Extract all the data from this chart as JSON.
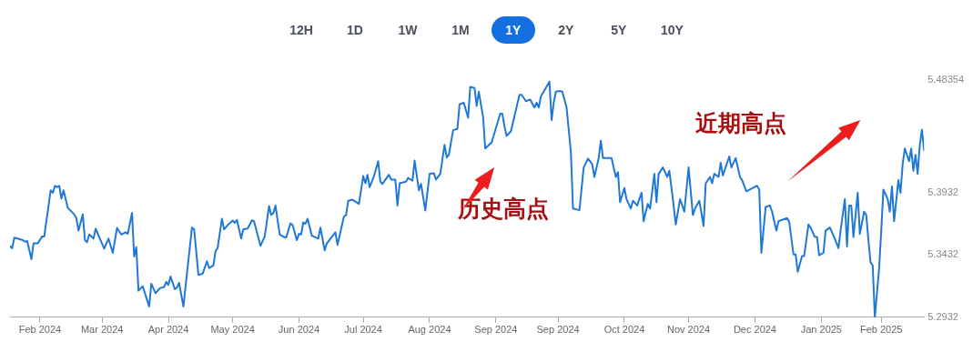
{
  "chart_data": {
    "type": "line",
    "annotations": [
      "12H",
      "1D",
      "1W",
      "1M",
      "1Y",
      "2Y",
      "5Y",
      "10Y",
      "历史高点",
      "近期高点"
    ],
    "xlim": [
      "2024-01-18",
      "2025-03-20"
    ],
    "xticks": [
      {
        "value": "2024-02-01",
        "label": "Feb 2024"
      },
      {
        "value": "2024-03-01",
        "label": "Mar 2024"
      },
      {
        "value": "2024-04-01",
        "label": "Apr 2024"
      },
      {
        "value": "2024-05-01",
        "label": "May 2024"
      },
      {
        "value": "2024-06-01",
        "label": "Jun 2024"
      },
      {
        "value": "2024-07-01",
        "label": "Jul 2024"
      },
      {
        "value": "2024-08-01",
        "label": "Aug 2024"
      },
      {
        "value": "2024-09-01",
        "label": "Sep 2024"
      },
      {
        "value": "2024-09-30",
        "label": "Sep 2024"
      },
      {
        "value": "2024-10-31",
        "label": "Oct 2024"
      },
      {
        "value": "2024-11-30",
        "label": "Nov 2024"
      },
      {
        "value": "2024-12-31",
        "label": "Dec 2024"
      },
      {
        "value": "2025-01-31",
        "label": "Jan 2025"
      },
      {
        "value": "2025-02-28",
        "label": "Feb 2025"
      }
    ],
    "ylim": [
      5.2932,
      5.48354
    ],
    "yticks": [
      5.2932,
      5.3432,
      5.3932,
      5.48354
    ],
    "grid": false,
    "legend": false,
    "marker": "none",
    "line_style": "solid",
    "series": [
      {
        "color": "#1f78d6",
        "x": [
          "2024-01-18",
          "2024-01-19",
          "2024-01-20",
          "2024-01-24",
          "2024-01-25",
          "2024-01-26",
          "2024-01-28",
          "2024-01-29",
          "2024-01-31",
          "2024-02-02",
          "2024-02-03",
          "2024-02-06",
          "2024-02-07",
          "2024-02-08",
          "2024-02-09",
          "2024-02-10",
          "2024-02-11",
          "2024-02-12",
          "2024-02-14",
          "2024-02-17",
          "2024-02-18",
          "2024-02-19",
          "2024-02-21",
          "2024-02-22",
          "2024-02-23",
          "2024-02-24",
          "2024-02-26",
          "2024-02-27",
          "2024-03-02",
          "2024-03-04",
          "2024-03-06",
          "2024-03-08",
          "2024-03-09",
          "2024-03-10",
          "2024-03-12",
          "2024-03-13",
          "2024-03-15",
          "2024-03-16",
          "2024-03-17",
          "2024-03-18",
          "2024-03-20",
          "2024-03-23",
          "2024-03-24",
          "2024-03-26",
          "2024-03-28",
          "2024-03-30",
          "2024-03-31",
          "2024-04-01",
          "2024-04-02",
          "2024-04-04",
          "2024-04-05",
          "2024-04-06",
          "2024-04-08",
          "2024-04-12",
          "2024-04-13",
          "2024-04-15",
          "2024-04-17",
          "2024-04-19",
          "2024-04-20",
          "2024-04-22",
          "2024-04-23",
          "2024-04-24",
          "2024-04-26",
          "2024-04-27",
          "2024-04-29",
          "2024-05-01",
          "2024-05-02",
          "2024-05-03",
          "2024-05-05",
          "2024-05-06",
          "2024-05-08",
          "2024-05-10",
          "2024-05-11",
          "2024-05-14",
          "2024-05-16",
          "2024-05-18",
          "2024-05-19",
          "2024-05-20",
          "2024-05-21",
          "2024-05-23",
          "2024-05-25",
          "2024-05-26",
          "2024-05-28",
          "2024-05-29",
          "2024-05-31",
          "2024-06-01",
          "2024-06-02",
          "2024-06-03",
          "2024-06-04",
          "2024-06-05",
          "2024-06-07",
          "2024-06-10",
          "2024-06-11",
          "2024-06-13",
          "2024-06-14",
          "2024-06-18",
          "2024-06-19",
          "2024-06-22",
          "2024-06-23",
          "2024-06-24",
          "2024-06-26",
          "2024-06-29",
          "2024-07-01",
          "2024-07-02",
          "2024-07-03",
          "2024-07-04",
          "2024-07-06",
          "2024-07-08",
          "2024-07-09",
          "2024-07-10",
          "2024-07-13",
          "2024-07-14",
          "2024-07-16",
          "2024-07-17",
          "2024-07-18",
          "2024-07-21",
          "2024-07-22",
          "2024-07-24",
          "2024-07-25",
          "2024-07-27",
          "2024-07-28",
          "2024-07-30",
          "2024-08-01",
          "2024-08-03",
          "2024-08-04",
          "2024-08-06",
          "2024-08-08",
          "2024-08-09",
          "2024-08-10",
          "2024-08-12",
          "2024-08-14",
          "2024-08-15",
          "2024-08-17",
          "2024-08-19",
          "2024-08-20",
          "2024-08-22",
          "2024-08-23",
          "2024-08-24",
          "2024-08-26",
          "2024-08-27",
          "2024-08-30",
          "2024-09-03",
          "2024-09-04",
          "2024-09-05",
          "2024-09-06",
          "2024-09-08",
          "2024-09-12",
          "2024-09-13",
          "2024-09-15",
          "2024-09-17",
          "2024-09-19",
          "2024-09-20",
          "2024-09-21",
          "2024-09-22",
          "2024-09-26",
          "2024-09-27",
          "2024-09-28",
          "2024-09-29",
          "2024-10-01",
          "2024-10-02",
          "2024-10-04",
          "2024-10-06",
          "2024-10-07",
          "2024-10-10",
          "2024-10-12",
          "2024-10-14",
          "2024-10-16",
          "2024-10-17",
          "2024-10-19",
          "2024-10-20",
          "2024-10-21",
          "2024-10-25",
          "2024-10-27",
          "2024-10-28",
          "2024-10-29",
          "2024-10-31",
          "2024-11-01",
          "2024-11-03",
          "2024-11-04",
          "2024-11-06",
          "2024-11-08",
          "2024-11-09",
          "2024-11-10",
          "2024-11-11",
          "2024-11-12",
          "2024-11-14",
          "2024-11-15",
          "2024-11-16",
          "2024-11-18",
          "2024-11-20",
          "2024-11-21",
          "2024-11-23",
          "2024-11-24",
          "2024-11-26",
          "2024-11-28",
          "2024-11-30",
          "2024-12-02",
          "2024-12-03",
          "2024-12-05",
          "2024-12-07",
          "2024-12-08",
          "2024-12-10",
          "2024-12-11",
          "2024-12-12",
          "2024-12-14",
          "2024-12-15",
          "2024-12-16",
          "2024-12-19",
          "2024-12-20",
          "2024-12-22",
          "2024-12-24",
          "2024-12-25",
          "2024-12-27",
          "2024-12-30",
          "2025-01-01",
          "2025-01-02",
          "2025-01-03",
          "2025-01-05",
          "2025-01-07",
          "2025-01-08",
          "2025-01-10",
          "2025-01-11",
          "2025-01-15",
          "2025-01-16",
          "2025-01-18",
          "2025-01-19",
          "2025-01-20",
          "2025-01-22",
          "2025-01-23",
          "2025-01-25",
          "2025-01-26",
          "2025-01-28",
          "2025-01-29",
          "2025-01-30",
          "2025-02-01",
          "2025-02-02",
          "2025-02-04",
          "2025-02-06",
          "2025-02-08",
          "2025-02-09",
          "2025-02-11",
          "2025-02-12",
          "2025-02-13",
          "2025-02-14",
          "2025-02-15",
          "2025-02-17",
          "2025-02-18",
          "2025-02-20",
          "2025-02-21",
          "2025-02-22",
          "2025-02-23",
          "2025-02-24",
          "2025-02-25",
          "2025-02-27",
          "2025-02-28",
          "2025-03-01",
          "2025-03-03",
          "2025-03-04",
          "2025-03-05",
          "2025-03-06",
          "2025-03-08",
          "2025-03-09",
          "2025-03-10",
          "2025-03-11",
          "2025-03-12",
          "2025-03-13",
          "2025-03-14",
          "2025-03-15",
          "2025-03-16",
          "2025-03-17",
          "2025-03-18",
          "2025-03-19",
          "2025-03-20"
        ],
        "values": [
          5.3505,
          5.3485,
          5.3571,
          5.3551,
          5.3538,
          5.3545,
          5.3398,
          5.3525,
          5.3525,
          5.3581,
          5.3581,
          5.3951,
          5.3931,
          5.3987,
          5.3976,
          5.3987,
          5.3885,
          5.3951,
          5.3809,
          5.3758,
          5.3728,
          5.3627,
          5.3758,
          5.3551,
          5.3535,
          5.3596,
          5.3563,
          5.3642,
          5.3482,
          5.3563,
          5.3449,
          5.3649,
          5.3622,
          5.3596,
          5.3614,
          5.3601,
          5.3769,
          5.3419,
          5.3495,
          5.3145,
          5.318,
          5.3018,
          5.3201,
          5.3125,
          5.3165,
          5.3175,
          5.3216,
          5.3191,
          5.3259,
          5.3158,
          5.317,
          5.3208,
          5.3018,
          5.3652,
          5.3639,
          5.3272,
          5.3282,
          5.3381,
          5.3327,
          5.3348,
          5.3462,
          5.3487,
          5.3723,
          5.3637,
          5.3677,
          5.3708,
          5.369,
          5.3713,
          5.3563,
          5.3639,
          5.3644,
          5.371,
          5.3703,
          5.3505,
          5.3581,
          5.3824,
          5.3753,
          5.3766,
          5.3829,
          5.3596,
          5.3576,
          5.3571,
          5.3685,
          5.3672,
          5.3551,
          5.3601,
          5.3596,
          5.3693,
          5.3682,
          5.3723,
          5.3586,
          5.3563,
          5.3652,
          5.3469,
          5.3525,
          5.3614,
          5.3513,
          5.3741,
          5.3753,
          5.3867,
          5.3875,
          5.3842,
          5.4065,
          5.4007,
          5.4075,
          5.3976,
          5.4063,
          5.4184,
          5.402,
          5.4002,
          5.4075,
          5.4037,
          5.4037,
          5.3829,
          5.4007,
          5.402,
          5.405,
          5.4027,
          5.4189,
          5.3951,
          5.4002,
          5.3789,
          5.4083,
          5.4088,
          5.4037,
          5.4083,
          5.4316,
          5.4215,
          5.4235,
          5.4433,
          5.4443,
          5.4641,
          5.4653,
          5.4532,
          5.478,
          5.4772,
          5.4628,
          5.4742,
          5.4539,
          5.4286,
          5.4336,
          5.4565,
          5.4565,
          5.4463,
          5.4387,
          5.4425,
          5.4717,
          5.4717,
          5.4666,
          5.4679,
          5.4615,
          5.4653,
          5.4615,
          5.4704,
          5.4823,
          5.4514,
          5.4653,
          5.4742,
          5.4747,
          5.4742,
          5.4615,
          5.426,
          5.3804,
          5.3791,
          5.4134,
          5.4205,
          5.4159,
          5.4058,
          5.421,
          5.4349,
          5.421,
          5.421,
          5.4058,
          5.4096,
          5.3855,
          5.3969,
          5.388,
          5.3804,
          5.3867,
          5.3829,
          5.3931,
          5.3703,
          5.3779,
          5.3842,
          5.3804,
          5.4083,
          5.3855,
          5.4083,
          5.4134,
          5.4058,
          5.4108,
          5.3829,
          5.3677,
          5.388,
          5.3779,
          5.4134,
          5.3753,
          5.3804,
          5.3867,
          5.3665,
          5.4007,
          5.4058,
          5.4007,
          5.4083,
          5.4058,
          5.4172,
          5.407,
          5.4222,
          5.4134,
          5.421,
          5.4058,
          5.4032,
          5.3943,
          5.3969,
          5.3987,
          5.3956,
          5.3449,
          5.3817,
          5.3829,
          5.3779,
          5.3627,
          5.3703,
          5.3728,
          5.3698,
          5.3436,
          5.3436,
          5.3297,
          5.3424,
          5.3424,
          5.3677,
          5.3652,
          5.3576,
          5.3576,
          5.3429,
          5.3449,
          5.3627,
          5.3652,
          5.3576,
          5.3487,
          5.3627,
          5.388,
          5.35,
          5.3829,
          5.3829,
          5.3576,
          5.3931,
          5.3601,
          5.3779,
          5.3753,
          5.3551,
          5.3373,
          5.3348,
          5.2932,
          5.3322,
          5.3627,
          5.3956,
          5.388,
          5.3779,
          5.3981,
          5.3703,
          5.4032,
          5.3931,
          5.4159,
          5.4286,
          5.4235,
          5.4184,
          5.4286,
          5.4108,
          5.4235,
          5.4083,
          5.4311,
          5.4438,
          5.4273
        ]
      }
    ]
  }
}
